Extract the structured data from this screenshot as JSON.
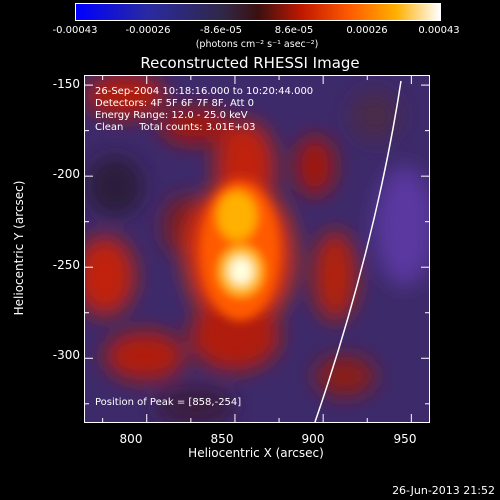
{
  "colorbar": {
    "ticks": [
      "-0.00043",
      "-0.00026",
      "-8.6e-05",
      "8.6e-05",
      "0.00026",
      "0.00043"
    ],
    "unit": "(photons cm⁻² s⁻¹ asec⁻²)"
  },
  "chart_data": {
    "type": "heatmap",
    "title": "Reconstructed RHESSI Image",
    "xlabel": "Heliocentric X (arcsec)",
    "ylabel": "Heliocentric Y (arcsec)",
    "xlim": [
      765,
      960
    ],
    "ylim": [
      -335,
      -145
    ],
    "xticks": [
      "800",
      "850",
      "900",
      "950"
    ],
    "yticks": [
      "-150",
      "-200",
      "-250",
      "-300"
    ],
    "colorbar_range": [
      -0.00043,
      0.00043
    ],
    "peak": [
      858,
      -254
    ],
    "annotations": [
      "26-Sep-2004 10:18:16.000 to 10:20:44.000",
      "Detectors: 4F 5F 6F 7F 8F, Att 0",
      "Energy Range: 12.0 - 25.0 keV",
      "Clean     Total counts: 3.01E+03"
    ],
    "peak_label": "Position of Peak = [858,-254]"
  },
  "footer": "26-Jun-2013 21:52"
}
